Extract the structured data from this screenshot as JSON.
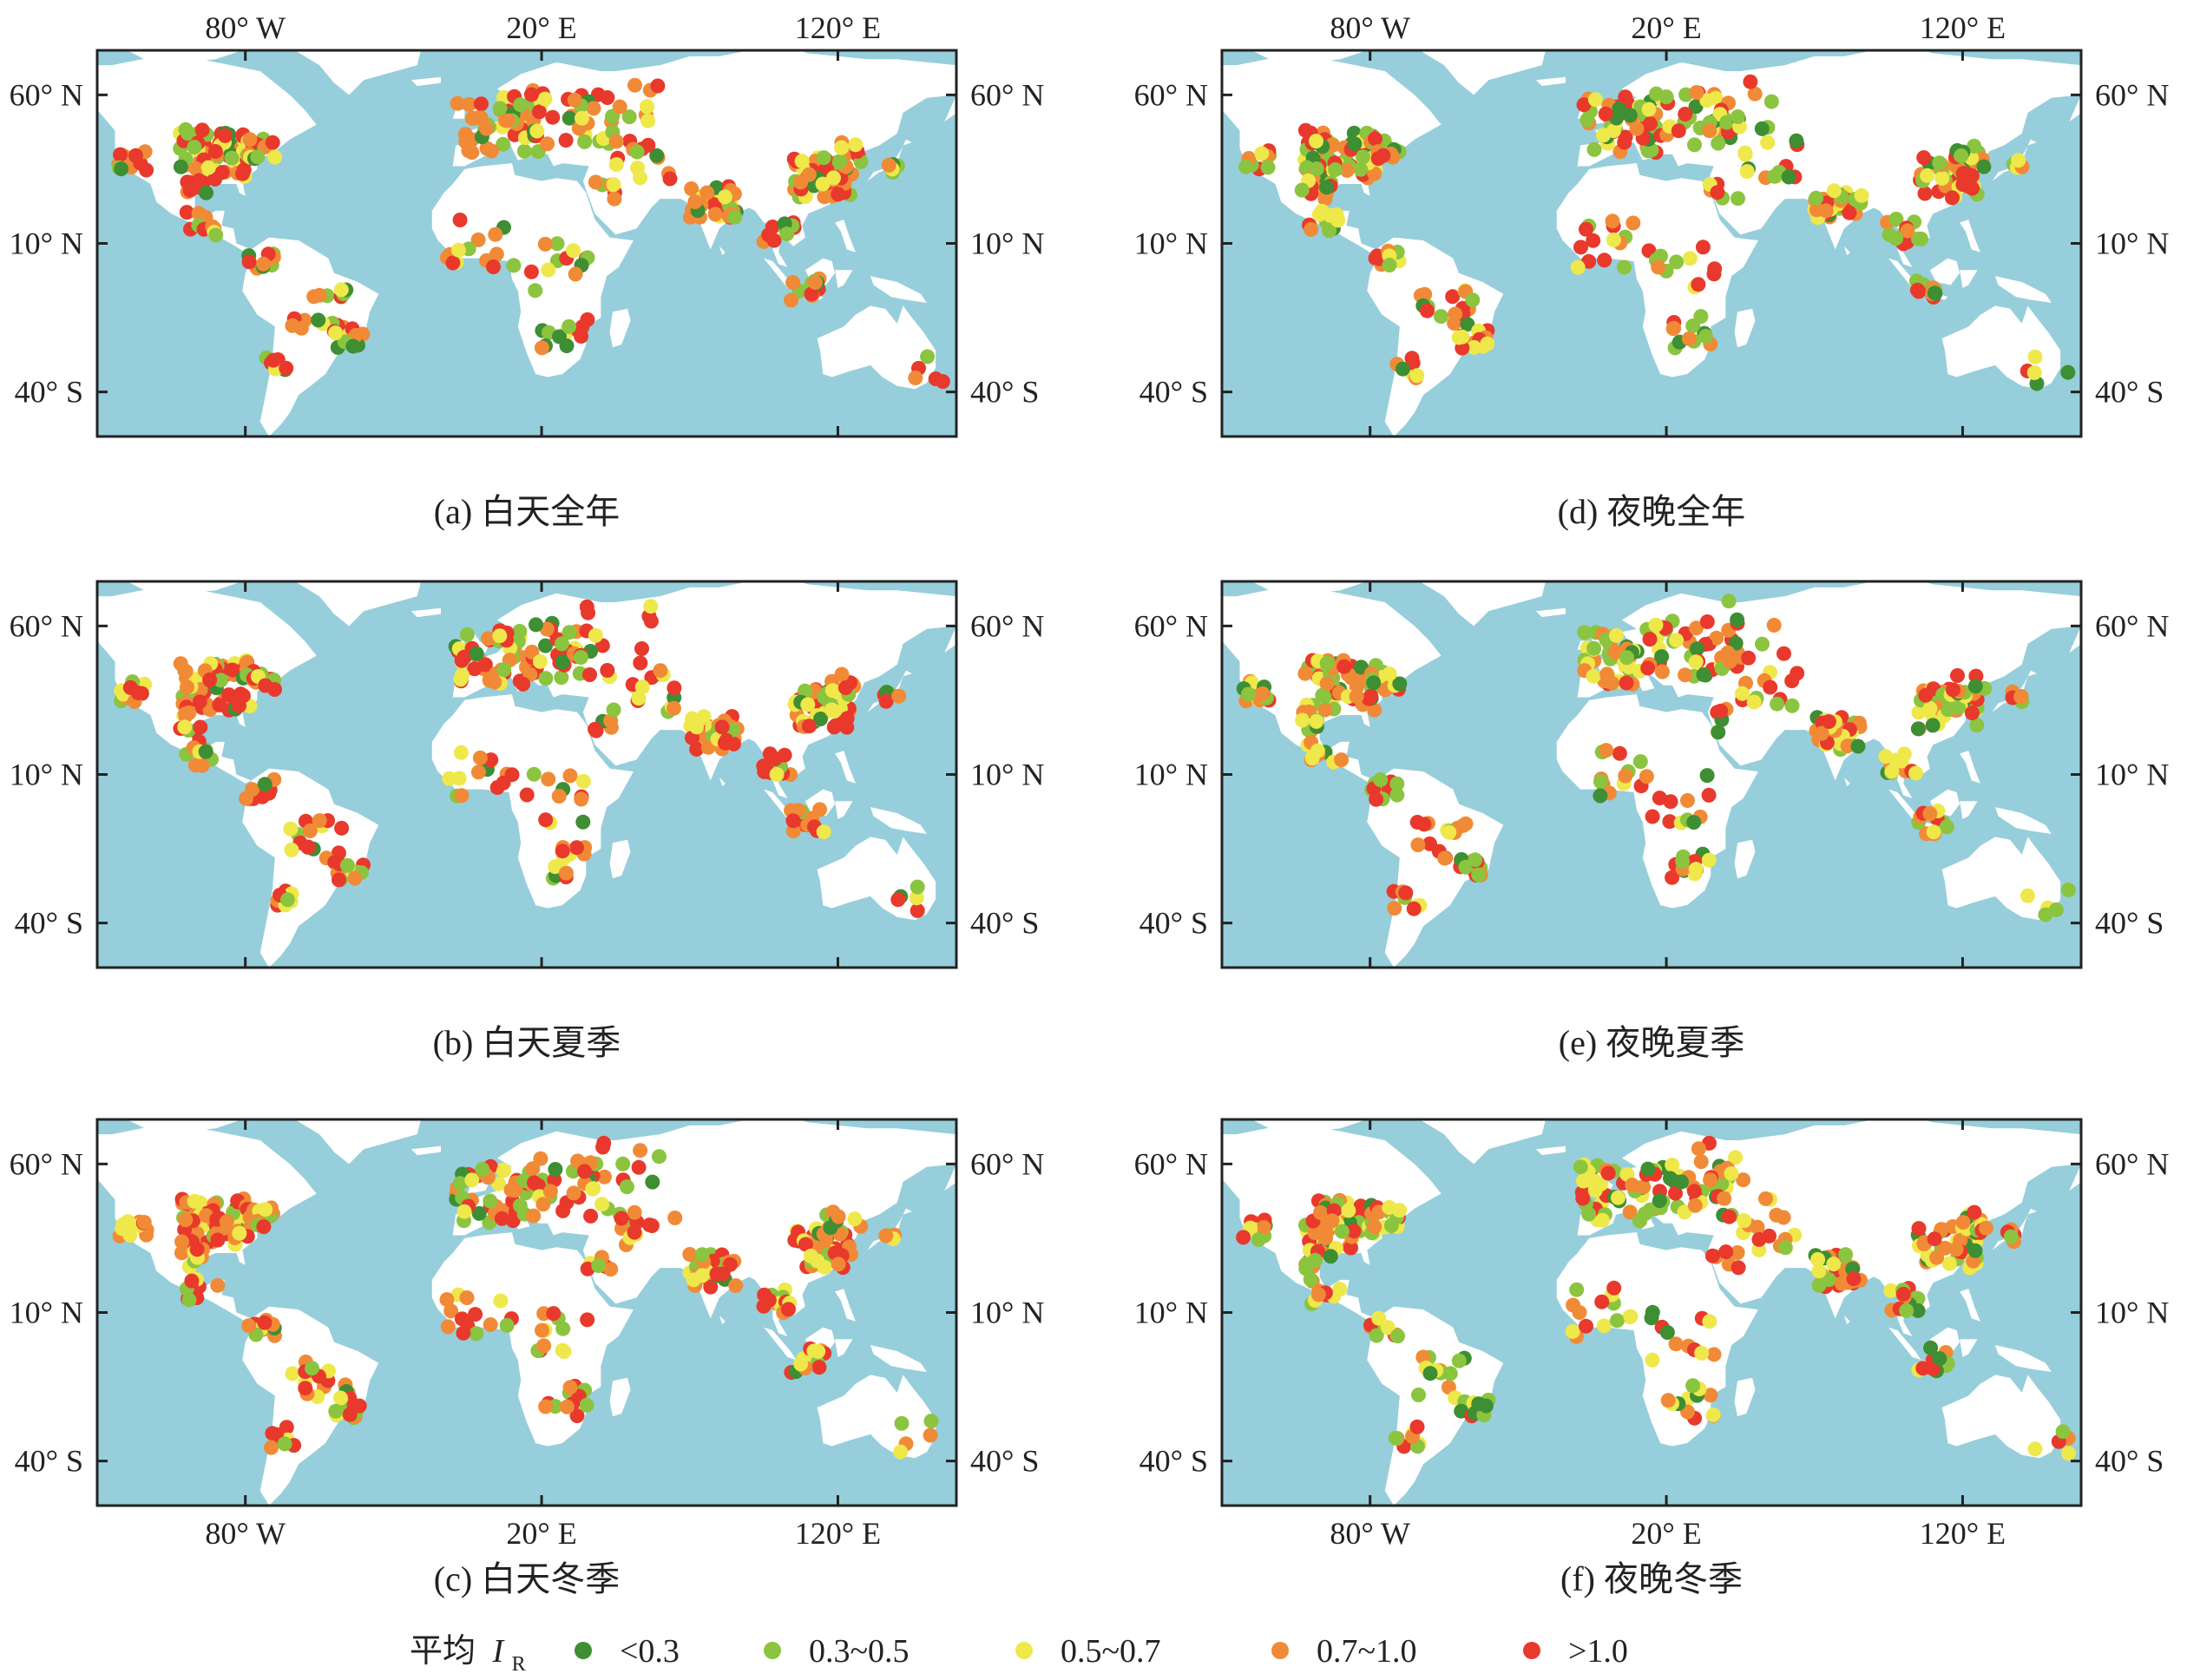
{
  "colors": {
    "ocean": "#97cedb",
    "land": "#ffffff",
    "classes": [
      "#3e8e33",
      "#8bc43f",
      "#eee84a",
      "#f18a36",
      "#e8392c"
    ]
  },
  "axes": {
    "lon_ticks": [
      {
        "lon": -80,
        "label": "80° W"
      },
      {
        "lon": 20,
        "label": "20° E"
      },
      {
        "lon": 120,
        "label": "120° E"
      }
    ],
    "lat_ticks": [
      {
        "lat": 60,
        "label": "60° N"
      },
      {
        "lat": 10,
        "label": "10° N"
      },
      {
        "lat": -40,
        "label": "40° S"
      }
    ],
    "lon_range": [
      -130,
      160
    ],
    "lat_range": [
      -55,
      75
    ]
  },
  "legend": {
    "title": "平均",
    "symbol": "I",
    "subscript": "R",
    "placement": "bottom",
    "items": [
      "<0.3",
      "0.3~0.5",
      "0.5~0.7",
      "0.7~1.0",
      ">1.0"
    ]
  },
  "chart_data": [
    {
      "type": "scatter",
      "caption": "(a) 白天全年"
    },
    {
      "type": "scatter",
      "caption": "(d) 夜晚全年"
    },
    {
      "type": "scatter",
      "caption": "(b) 白天夏季"
    },
    {
      "type": "scatter",
      "caption": "(e) 夜晚夏季"
    },
    {
      "type": "scatter",
      "caption": "(c) 白天冬季"
    },
    {
      "type": "scatter",
      "caption": "(f) 夜晚冬季"
    }
  ]
}
